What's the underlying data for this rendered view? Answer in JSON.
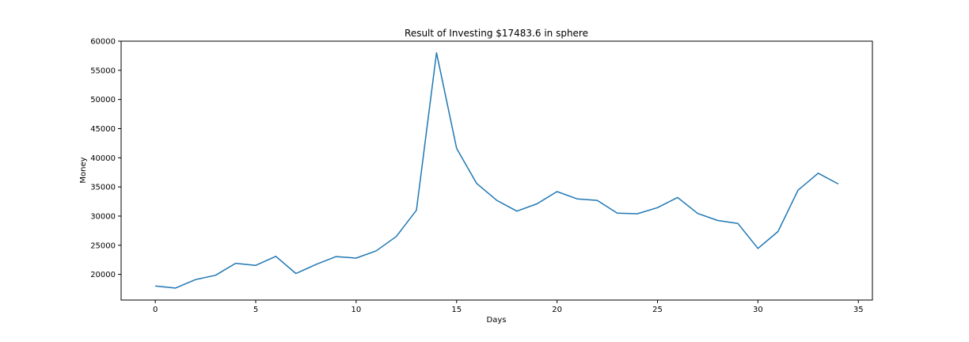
{
  "chart_data": {
    "type": "line",
    "title": "Result of Investing $17483.6 in sphere",
    "xlabel": "Days",
    "ylabel": "Money",
    "xlim": [
      -1.7,
      35.7
    ],
    "ylim": [
      15600,
      60000
    ],
    "xticks": [
      0,
      5,
      10,
      15,
      20,
      25,
      30,
      35
    ],
    "yticks": [
      20000,
      25000,
      30000,
      35000,
      40000,
      45000,
      50000,
      55000,
      60000
    ],
    "grid": false,
    "series": [
      {
        "color": "#1f77b4",
        "x": [
          0,
          1,
          2,
          3,
          4,
          5,
          6,
          7,
          8,
          9,
          10,
          11,
          12,
          13,
          14,
          15,
          16,
          17,
          18,
          19,
          20,
          21,
          22,
          23,
          24,
          25,
          26,
          27,
          28,
          29,
          30,
          31,
          32,
          33,
          34
        ],
        "values": [
          18000,
          17650,
          19100,
          19850,
          21900,
          21550,
          23100,
          20150,
          21700,
          23050,
          22800,
          24050,
          26500,
          31000,
          58000,
          41600,
          35600,
          32700,
          30850,
          32100,
          34200,
          32950,
          32700,
          30500,
          30400,
          31450,
          33200,
          30450,
          29250,
          28750,
          24450,
          27350,
          34450,
          37350,
          35500
        ]
      }
    ]
  }
}
